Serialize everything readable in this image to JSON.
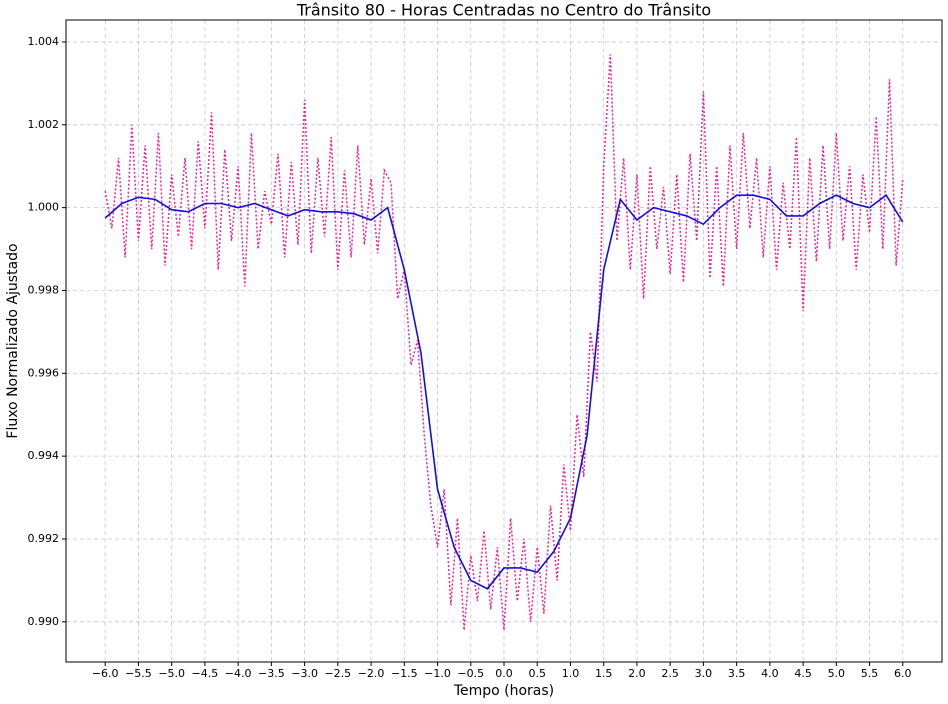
{
  "chart_data": {
    "type": "line",
    "title": "Trânsito 80 - Horas Centradas no Centro do Trânsito",
    "x_label": "Tempo (horas)",
    "y_label": "Fluxo Normalizado Ajustado",
    "grid": true,
    "xlim": [
      -6.59,
      6.59
    ],
    "ylim": [
      0.98903,
      1.00453
    ],
    "xticks": [
      {
        "value": -6,
        "label": "−6.0"
      },
      {
        "value": -5.5,
        "label": "−5.5"
      },
      {
        "value": -5,
        "label": "−5.0"
      },
      {
        "value": -4.5,
        "label": "−4.5"
      },
      {
        "value": -4,
        "label": "−4.0"
      },
      {
        "value": -3.5,
        "label": "−3.5"
      },
      {
        "value": -3,
        "label": "−3.0"
      },
      {
        "value": -2.5,
        "label": "−2.5"
      },
      {
        "value": -2,
        "label": "−2.0"
      },
      {
        "value": -1.5,
        "label": "−1.5"
      },
      {
        "value": -1,
        "label": "−1.0"
      },
      {
        "value": -0.5,
        "label": "−0.5"
      },
      {
        "value": 0,
        "label": "0.0"
      },
      {
        "value": 0.5,
        "label": "0.5"
      },
      {
        "value": 1,
        "label": "1.0"
      },
      {
        "value": 1.5,
        "label": "1.5"
      },
      {
        "value": 2,
        "label": "2.0"
      },
      {
        "value": 2.5,
        "label": "2.5"
      },
      {
        "value": 3,
        "label": "3.0"
      },
      {
        "value": 3.5,
        "label": "3.5"
      },
      {
        "value": 4,
        "label": "4.0"
      },
      {
        "value": 4.5,
        "label": "4.5"
      },
      {
        "value": 5,
        "label": "5.0"
      },
      {
        "value": 5.5,
        "label": "5.5"
      },
      {
        "value": 6,
        "label": "6.0"
      }
    ],
    "yticks": [
      {
        "value": 0.99,
        "label": "0.990"
      },
      {
        "value": 0.992,
        "label": "0.992"
      },
      {
        "value": 0.994,
        "label": "0.994"
      },
      {
        "value": 0.996,
        "label": "0.996"
      },
      {
        "value": 0.998,
        "label": "0.998"
      },
      {
        "value": 1,
        "label": "1.000"
      },
      {
        "value": 1.002,
        "label": "1.002"
      },
      {
        "value": 1.004,
        "label": "1.004"
      }
    ],
    "series": [
      {
        "color": "#e8259c",
        "style": "dotted",
        "x": [
          -6.0,
          -5.9,
          -5.8,
          -5.7,
          -5.6,
          -5.5,
          -5.4,
          -5.3,
          -5.2,
          -5.1,
          -5.0,
          -4.9,
          -4.8,
          -4.7,
          -4.6,
          -4.5,
          -4.4,
          -4.3,
          -4.2,
          -4.1,
          -4.0,
          -3.9,
          -3.8,
          -3.7,
          -3.6,
          -3.5,
          -3.4,
          -3.3,
          -3.2,
          -3.1,
          -3.0,
          -2.9,
          -2.8,
          -2.7,
          -2.6,
          -2.5,
          -2.4,
          -2.3,
          -2.2,
          -2.1,
          -2.0,
          -1.9,
          -1.8,
          -1.7,
          -1.6,
          -1.5,
          -1.4,
          -1.3,
          -1.2,
          -1.1,
          -1.0,
          -0.9,
          -0.8,
          -0.7,
          -0.6,
          -0.5,
          -0.4,
          -0.3,
          -0.2,
          -0.1,
          0.0,
          0.1,
          0.2,
          0.3,
          0.4,
          0.5,
          0.6,
          0.7,
          0.8,
          0.9,
          1.0,
          1.1,
          1.2,
          1.3,
          1.4,
          1.5,
          1.6,
          1.7,
          1.8,
          1.9,
          2.0,
          2.1,
          2.2,
          2.3,
          2.4,
          2.5,
          2.6,
          2.7,
          2.8,
          2.9,
          3.0,
          3.1,
          3.2,
          3.3,
          3.4,
          3.5,
          3.6,
          3.7,
          3.8,
          3.9,
          4.0,
          4.1,
          4.2,
          4.3,
          4.4,
          4.5,
          4.6,
          4.7,
          4.8,
          4.9,
          5.0,
          5.1,
          5.2,
          5.3,
          5.4,
          5.5,
          5.6,
          5.7,
          5.8,
          5.9,
          6.0
        ],
        "values": [
          1.0004,
          0.9995,
          1.0012,
          0.9988,
          1.002,
          0.9992,
          1.0015,
          0.999,
          1.0018,
          0.9986,
          1.0008,
          0.9993,
          1.0012,
          0.999,
          1.0016,
          0.9995,
          1.0023,
          0.9985,
          1.0014,
          0.9992,
          1.001,
          0.9981,
          1.0018,
          0.999,
          1.0004,
          0.9996,
          1.0013,
          0.9988,
          1.0011,
          0.9991,
          1.0026,
          0.9989,
          1.0012,
          0.9993,
          1.0017,
          0.9985,
          1.0009,
          0.9988,
          1.0015,
          0.9991,
          1.0007,
          0.9989,
          1.0009,
          1.0006,
          0.9978,
          0.9985,
          0.9962,
          0.9968,
          0.9945,
          0.9928,
          0.9918,
          0.9932,
          0.9904,
          0.9925,
          0.9898,
          0.9916,
          0.9905,
          0.9922,
          0.9903,
          0.9918,
          0.9898,
          0.9925,
          0.9905,
          0.992,
          0.99,
          0.9918,
          0.9902,
          0.9928,
          0.991,
          0.9938,
          0.9922,
          0.995,
          0.9935,
          0.997,
          0.9958,
          1.001,
          1.0037,
          0.9992,
          1.0012,
          0.9985,
          1.0008,
          0.9978,
          1.001,
          0.999,
          1.0005,
          0.9984,
          1.0008,
          0.9982,
          1.0013,
          0.9992,
          1.0028,
          0.9983,
          1.001,
          0.9981,
          1.0015,
          0.999,
          1.0018,
          0.9995,
          1.0012,
          0.9988,
          1.001,
          0.9985,
          1.0006,
          0.999,
          1.0017,
          0.9975,
          1.0012,
          0.9987,
          1.0015,
          0.999,
          1.0018,
          0.9992,
          1.001,
          0.9985,
          1.0008,
          0.9994,
          1.0022,
          0.999,
          1.0031,
          0.9986,
          1.0007
        ]
      },
      {
        "color": "#1010e0",
        "style": "solid",
        "x": [
          -6.0,
          -5.75,
          -5.5,
          -5.25,
          -5.0,
          -4.75,
          -4.5,
          -4.25,
          -4.0,
          -3.75,
          -3.5,
          -3.25,
          -3.0,
          -2.75,
          -2.5,
          -2.25,
          -2.0,
          -1.75,
          -1.5,
          -1.25,
          -1.0,
          -0.75,
          -0.5,
          -0.25,
          0.0,
          0.25,
          0.5,
          0.75,
          1.0,
          1.25,
          1.5,
          1.75,
          2.0,
          2.25,
          2.5,
          2.75,
          3.0,
          3.25,
          3.5,
          3.75,
          4.0,
          4.25,
          4.5,
          4.75,
          5.0,
          5.25,
          5.5,
          5.75,
          6.0
        ],
        "values": [
          0.99975,
          1.0001,
          1.00025,
          1.0002,
          0.99995,
          0.9999,
          1.0001,
          1.0001,
          1.0,
          1.0001,
          0.99995,
          0.9998,
          0.99995,
          0.9999,
          0.9999,
          0.99985,
          0.9997,
          1.0,
          0.9985,
          0.9965,
          0.9932,
          0.9918,
          0.991,
          0.9908,
          0.9913,
          0.9913,
          0.9912,
          0.9917,
          0.9925,
          0.9945,
          0.9985,
          1.0002,
          0.9997,
          1.0,
          0.9999,
          0.9998,
          0.9996,
          1.0,
          1.0003,
          1.0003,
          1.0002,
          0.9998,
          0.9998,
          1.0001,
          1.0003,
          1.0001,
          1.0,
          1.0003,
          0.99965
        ]
      }
    ]
  }
}
